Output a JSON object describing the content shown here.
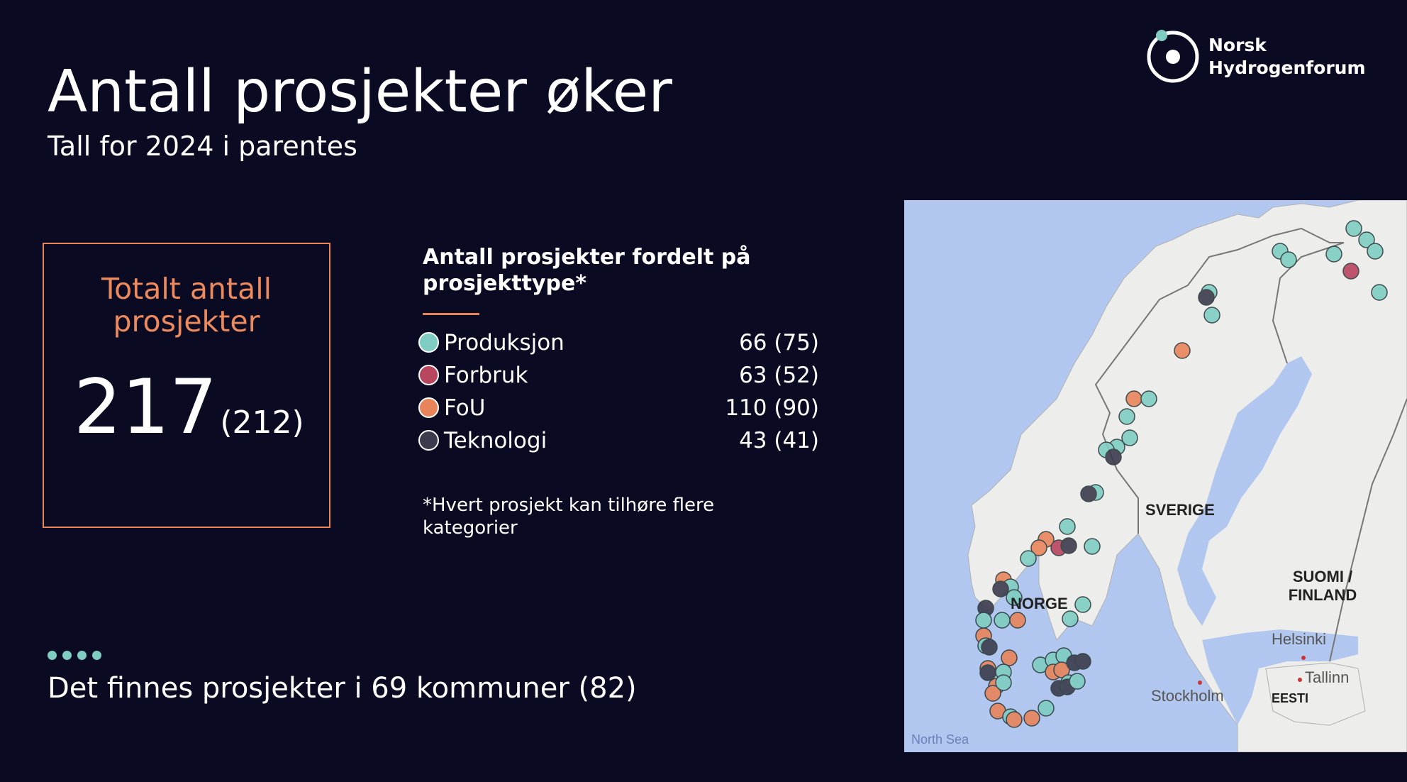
{
  "title": "Antall prosjekter øker",
  "subtitle": "Tall for 2024 i parentes",
  "logo": {
    "line1": "Norsk",
    "line2": "Hydrogenforum"
  },
  "total": {
    "label": "Totalt antall prosjekter",
    "value": "217",
    "previous": "(212)"
  },
  "types": {
    "heading": "Antall prosjekter fordelt på prosjekttype*",
    "items": [
      {
        "name": "Produksjon",
        "value": "66 (75)",
        "color": "#7fcdc2"
      },
      {
        "name": "Forbruk",
        "value": "63 (52)",
        "color": "#b8465f"
      },
      {
        "name": "FoU",
        "value": "110 (90)",
        "color": "#e8845a"
      },
      {
        "name": "Teknologi",
        "value": "43 (41)",
        "color": "#3b3b4d"
      }
    ],
    "footnote": "*Hvert prosjekt kan tilhøre flere kategorier"
  },
  "municipalities": "Det finnes prosjekter i 69 kommuner (82)",
  "map": {
    "labels": {
      "sverige": "SVERIGE",
      "norge": "NORGE",
      "finland": "SUOMI / FINLAND",
      "eesti": "EESTI",
      "helsinki": "Helsinki",
      "tallinn": "Tallinn",
      "stockholm": "Stockholm",
      "north_sea": "North Sea"
    }
  }
}
